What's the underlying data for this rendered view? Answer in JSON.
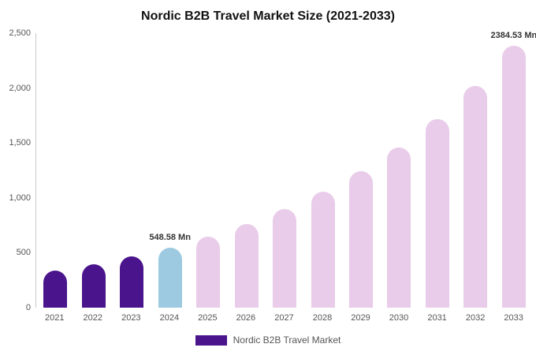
{
  "chart_data": {
    "type": "bar",
    "title": "Nordic B2B Travel Market Size (2021-2033)",
    "legend": "Nordic B2B Travel Market",
    "xlabel": "",
    "ylabel": "",
    "ylim": [
      0,
      2500
    ],
    "grid": false,
    "legend_position": "bottom",
    "categories": [
      "2021",
      "2022",
      "2023",
      "2024",
      "2025",
      "2026",
      "2027",
      "2028",
      "2029",
      "2030",
      "2031",
      "2032",
      "2033"
    ],
    "values": [
      336,
      396,
      466,
      548.58,
      646,
      760,
      895,
      1053,
      1240,
      1459,
      1717,
      2020,
      2384.53
    ],
    "bar_colors": [
      "#4a148c",
      "#4a148c",
      "#4a148c",
      "#9dcae0",
      "#e9cce9",
      "#e9cce9",
      "#e9cce9",
      "#e9cce9",
      "#e9cce9",
      "#e9cce9",
      "#e9cce9",
      "#e9cce9",
      "#e9cce9"
    ],
    "yticks": [
      {
        "value": 0,
        "label": "0"
      },
      {
        "value": 500,
        "label": "500"
      },
      {
        "value": 1000,
        "label": "1,000"
      },
      {
        "value": 1500,
        "label": "1,500"
      },
      {
        "value": 2000,
        "label": "2,000"
      },
      {
        "value": 2500,
        "label": "2,500"
      }
    ],
    "annotations": [
      {
        "index": 3,
        "text": "548.58 Mn"
      },
      {
        "index": 12,
        "text": "2384.53 Mn"
      }
    ],
    "colors": {
      "historical": "#4a148c",
      "current_year": "#9dcae0",
      "forecast": "#e9cce9"
    }
  }
}
